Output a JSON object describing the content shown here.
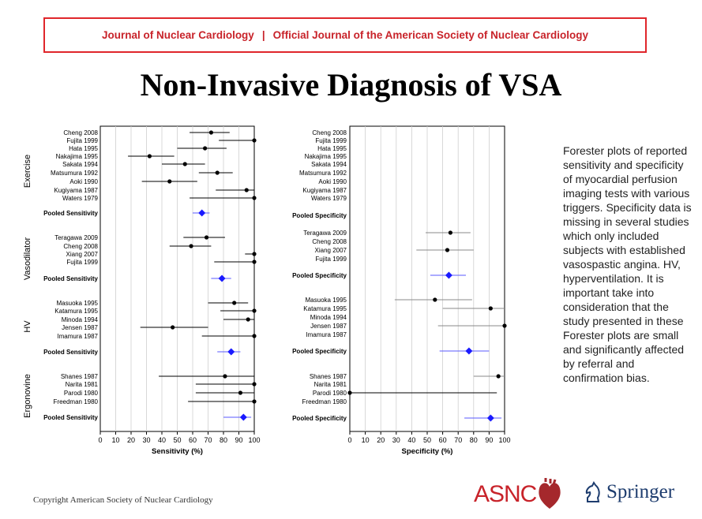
{
  "header": {
    "journal": "Journal of Nuclear Cardiology",
    "separator": "|",
    "subtitle": "Official Journal of the American Society of Nuclear Cardiology"
  },
  "slide_title": "Non-Invasive Diagnosis of VSA",
  "caption": "Forester plots of reported sensitivity and specificity of myocardial perfusion imaging tests with various triggers. Specificity data is missing in several studies which only included subjects with established vasospastic angina. HV, hyperventilation. It is important take into consideration that the study presented in these Forester plots are small and significantly affected by referral and confirmation bias.",
  "footer": {
    "copyright": "Copyright  American Society of Nuclear Cardiology",
    "asnc_logo": "ASNC",
    "springer_logo": "Springer"
  },
  "colors": {
    "banner": "#e0262b",
    "pooled": "#1a1aff",
    "point": "#000000"
  },
  "chart_data": [
    {
      "type": "forest",
      "xlabel": "Sensitivity (%)",
      "xlim": [
        0,
        100
      ],
      "xticks": [
        0,
        10,
        20,
        30,
        40,
        50,
        60,
        70,
        80,
        90,
        100
      ],
      "grid": true,
      "groups": [
        {
          "name": "Exercise",
          "studies": [
            {
              "label": "Cheng 2008",
              "value": 72,
              "lo": 58,
              "hi": 84
            },
            {
              "label": "Fujita 1999",
              "value": 100,
              "lo": 77,
              "hi": 100
            },
            {
              "label": "Hata 1995",
              "value": 68,
              "lo": 50,
              "hi": 82
            },
            {
              "label": "Nakajima 1995",
              "value": 32,
              "lo": 18,
              "hi": 48
            },
            {
              "label": "Sakata 1994",
              "value": 55,
              "lo": 40,
              "hi": 68
            },
            {
              "label": "Matsumura 1992",
              "value": 76,
              "lo": 64,
              "hi": 86
            },
            {
              "label": "Aoki 1990",
              "value": 45,
              "lo": 27,
              "hi": 63
            },
            {
              "label": "Kugiyama 1987",
              "value": 95,
              "lo": 75,
              "hi": 100
            },
            {
              "label": "Waters 1979",
              "value": 100,
              "lo": 58,
              "hi": 100
            }
          ],
          "pooled": {
            "label": "Pooled Sensitivity",
            "value": 66,
            "lo": 60,
            "hi": 71
          }
        },
        {
          "name": "Vasodilator",
          "studies": [
            {
              "label": "Teragawa 2009",
              "value": 69,
              "lo": 54,
              "hi": 81
            },
            {
              "label": "Cheng 2008",
              "value": 59,
              "lo": 45,
              "hi": 72
            },
            {
              "label": "Xiang 2007",
              "value": 100,
              "lo": 94,
              "hi": 100
            },
            {
              "label": "Fujita 1999",
              "value": 100,
              "lo": 74,
              "hi": 100
            }
          ],
          "pooled": {
            "label": "Pooled Sensitivity",
            "value": 79,
            "lo": 72,
            "hi": 85
          }
        },
        {
          "name": "HV",
          "studies": [
            {
              "label": "Masuoka 1995",
              "value": 87,
              "lo": 70,
              "hi": 96
            },
            {
              "label": "Katamura 1995",
              "value": 100,
              "lo": 78,
              "hi": 100
            },
            {
              "label": "Minoda 1994",
              "value": 96,
              "lo": 80,
              "hi": 100
            },
            {
              "label": "Jensen 1987",
              "value": 47,
              "lo": 26,
              "hi": 70
            },
            {
              "label": "Imamura 1987",
              "value": 100,
              "lo": 66,
              "hi": 100
            }
          ],
          "pooled": {
            "label": "Pooled Sensitivity",
            "value": 85,
            "lo": 76,
            "hi": 91
          }
        },
        {
          "name": "Ergonovine",
          "studies": [
            {
              "label": "Shanes 1987",
              "value": 81,
              "lo": 38,
              "hi": 100
            },
            {
              "label": "Narita 1981",
              "value": 100,
              "lo": 62,
              "hi": 100
            },
            {
              "label": "Parodi 1980",
              "value": 91,
              "lo": 62,
              "hi": 100
            },
            {
              "label": "Freedman 1980",
              "value": 100,
              "lo": 57,
              "hi": 100
            }
          ],
          "pooled": {
            "label": "Pooled Sensitivity",
            "value": 93,
            "lo": 80,
            "hi": 98
          }
        }
      ]
    },
    {
      "type": "forest",
      "xlabel": "Specificity (%)",
      "xlim": [
        0,
        100
      ],
      "xticks": [
        0,
        10,
        20,
        30,
        40,
        50,
        60,
        70,
        80,
        90,
        100
      ],
      "grid": true,
      "groups": [
        {
          "name": "Exercise",
          "studies": [
            {
              "label": "Cheng 2008"
            },
            {
              "label": "Fujita 1999"
            },
            {
              "label": "Hata 1995"
            },
            {
              "label": "Nakajima 1995"
            },
            {
              "label": "Sakata 1994"
            },
            {
              "label": "Matsumura 1992"
            },
            {
              "label": "Aoki 1990"
            },
            {
              "label": "Kugiyama 1987"
            },
            {
              "label": "Waters 1979"
            }
          ],
          "pooled": {
            "label": "Pooled Specificity"
          }
        },
        {
          "name": "Vasodilator",
          "studies": [
            {
              "label": "Teragawa 2009",
              "value": 65,
              "lo": 49,
              "hi": 78
            },
            {
              "label": "Cheng 2008"
            },
            {
              "label": "Xiang 2007",
              "value": 63,
              "lo": 43,
              "hi": 80
            },
            {
              "label": "Fujita 1999"
            }
          ],
          "pooled": {
            "label": "Pooled Specificity",
            "value": 64,
            "lo": 52,
            "hi": 75
          }
        },
        {
          "name": "HV",
          "studies": [
            {
              "label": "Masuoka 1995",
              "value": 55,
              "lo": 29,
              "hi": 79
            },
            {
              "label": "Katamura 1995",
              "value": 91,
              "lo": 60,
              "hi": 100
            },
            {
              "label": "Minoda 1994"
            },
            {
              "label": "Jensen 1987",
              "value": 100,
              "lo": 57,
              "hi": 100
            },
            {
              "label": "Imamura 1987"
            }
          ],
          "pooled": {
            "label": "Pooled Specificity",
            "value": 77,
            "lo": 58,
            "hi": 90
          }
        },
        {
          "name": "Ergonovine",
          "studies": [
            {
              "label": "Shanes 1987",
              "value": 96,
              "lo": 80,
              "hi": 100
            },
            {
              "label": "Narita 1981"
            },
            {
              "label": "Parodi 1980",
              "value": 0,
              "lo": 0,
              "hi": 95
            },
            {
              "label": "Freedman 1980"
            }
          ],
          "pooled": {
            "label": "Pooled Specificity",
            "value": 91,
            "lo": 74,
            "hi": 98
          }
        }
      ]
    }
  ]
}
